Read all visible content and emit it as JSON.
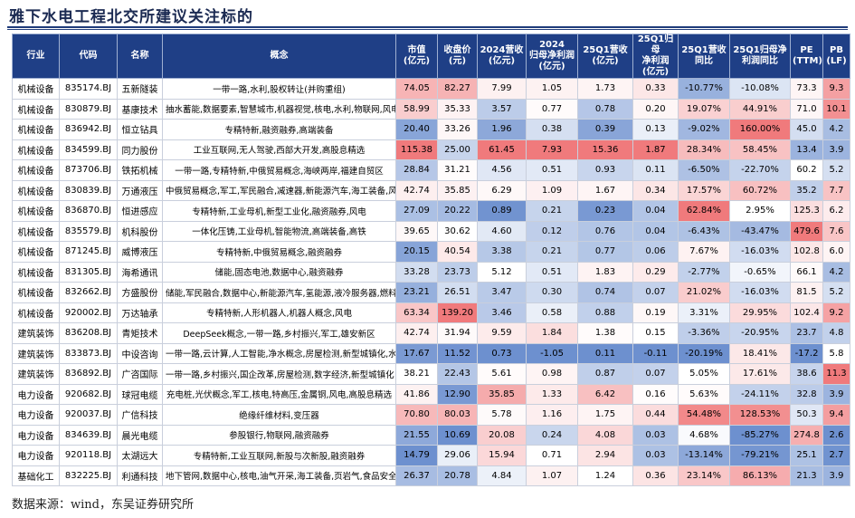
{
  "title": "雅下水电工程北交所建议关注标的",
  "footer": "数据来源：wind，东吴证券研究所",
  "headers": [
    "行业",
    "代码",
    "名称",
    "概念",
    "市值\n(亿元)",
    "收盘价\n(元)",
    "2024营收\n(亿元)",
    "2024\n归母净利润\n(亿元)",
    "25Q1营收\n(亿元)",
    "25Q1归母\n净利润\n(亿元)",
    "25Q1营收\n同比",
    "25Q1归母净\n利润同比",
    "PE\n(TTM)",
    "PB\n(LF)"
  ],
  "rows": [
    [
      "机械设备",
      "835174.BJ",
      "五新隧装",
      "一带一路,水利,股权转让(并购重组)",
      "74.05",
      "82.27",
      "7.99",
      "1.05",
      "1.73",
      "0.33",
      "-10.77%",
      "-10.08%",
      "73.3",
      "9.3"
    ],
    [
      "机械设备",
      "830879.BJ",
      "基康技术",
      "抽水蓄能,数据要素,智慧城市,机器视觉,核电,水利,物联网,风电",
      "58.99",
      "35.33",
      "3.57",
      "0.77",
      "0.78",
      "0.20",
      "19.07%",
      "44.91%",
      "71.0",
      "10.1"
    ],
    [
      "机械设备",
      "836942.BJ",
      "恒立钻具",
      "专精特新,融资融券,高端装备",
      "20.40",
      "33.26",
      "1.96",
      "0.38",
      "0.39",
      "0.13",
      "-9.02%",
      "160.00%",
      "45.0",
      "4.2"
    ],
    [
      "机械设备",
      "834599.BJ",
      "同力股份",
      "工业互联网,无人驾驶,西部大开发,高股息精选",
      "115.38",
      "25.00",
      "61.45",
      "7.93",
      "15.36",
      "1.87",
      "28.34%",
      "58.45%",
      "13.4",
      "3.9"
    ],
    [
      "机械设备",
      "873706.BJ",
      "铁拓机械",
      "一带一路,专精特新,中俄贸易概念,海峡两岸,福建自贸区",
      "28.84",
      "31.21",
      "4.56",
      "0.51",
      "0.93",
      "0.11",
      "-6.50%",
      "-22.70%",
      "60.2",
      "5.2"
    ],
    [
      "机械设备",
      "830839.BJ",
      "万通液压",
      "中俄贸易概念,军工,军民融合,减速器,新能源汽车,海工装备,风电",
      "42.74",
      "35.85",
      "6.29",
      "1.09",
      "1.67",
      "0.34",
      "17.57%",
      "60.72%",
      "35.2",
      "7.7"
    ],
    [
      "机械设备",
      "836870.BJ",
      "恒进感应",
      "专精特新,工业母机,新型工业化,融资融券,风电",
      "27.09",
      "20.22",
      "0.89",
      "0.21",
      "0.23",
      "0.04",
      "62.84%",
      "2.95%",
      "125.3",
      "6.2"
    ],
    [
      "机械设备",
      "835579.BJ",
      "机科股份",
      "一体化压铸,工业母机,智能物流,高端装备,高铁",
      "39.65",
      "30.62",
      "4.60",
      "0.12",
      "0.76",
      "0.04",
      "-6.43%",
      "-43.47%",
      "479.6",
      "7.6"
    ],
    [
      "机械设备",
      "871245.BJ",
      "威博液压",
      "专精特新,中俄贸易概念,融资融券",
      "20.15",
      "40.54",
      "3.38",
      "0.21",
      "0.77",
      "0.06",
      "7.67%",
      "-16.03%",
      "102.8",
      "6.0"
    ],
    [
      "机械设备",
      "831305.BJ",
      "海希通讯",
      "储能,固态电池,数据中心,融资融券",
      "33.28",
      "23.73",
      "5.12",
      "0.51",
      "1.83",
      "0.29",
      "-2.77%",
      "-0.65%",
      "66.1",
      "4.2"
    ],
    [
      "机械设备",
      "832662.BJ",
      "方盛股份",
      "储能,军民融合,数据中心,新能源汽车,氢能源,液冷服务器,燃料电池",
      "23.21",
      "26.51",
      "3.47",
      "0.30",
      "0.74",
      "0.07",
      "21.02%",
      "-16.03%",
      "81.5",
      "5.2"
    ],
    [
      "机械设备",
      "920002.BJ",
      "万达轴承",
      "专精特新,人形机器人,机器人概念,风电",
      "63.34",
      "139.20",
      "3.46",
      "0.58",
      "0.88",
      "0.19",
      "3.31%",
      "29.95%",
      "102.4",
      "9.2"
    ],
    [
      "建筑装饰",
      "836208.BJ",
      "青矩技术",
      "DeepSeek概念,一带一路,乡村振兴,军工,雄安新区",
      "42.74",
      "31.94",
      "9.59",
      "1.84",
      "1.38",
      "0.15",
      "-3.36%",
      "-20.95%",
      "23.7",
      "4.8"
    ],
    [
      "建筑装饰",
      "833873.BJ",
      "中设咨询",
      "一带一路,云计算,人工智能,净水概念,房屋检测,新型城镇化,水利",
      "17.67",
      "11.52",
      "0.73",
      "-1.05",
      "0.11",
      "-0.11",
      "-20.19%",
      "18.41%",
      "-17.2",
      "5.8"
    ],
    [
      "建筑装饰",
      "836892.BJ",
      "广咨国际",
      "一带一路,乡村振兴,国企改革,房屋检测,数字经济,新型城镇化",
      "38.21",
      "22.43",
      "5.61",
      "0.98",
      "0.87",
      "0.07",
      "5.05%",
      "17.61%",
      "38.6",
      "11.3"
    ],
    [
      "电力设备",
      "920682.BJ",
      "球冠电缆",
      "充电桩,光伏概念,军工,核电,特高压,金属铜,风电,高股息精选",
      "41.86",
      "12.90",
      "35.85",
      "1.33",
      "6.42",
      "0.16",
      "5.63%",
      "-24.11%",
      "32.8",
      "3.9"
    ],
    [
      "电力设备",
      "920037.BJ",
      "广信科技",
      "绝缘纤维材料,变压器",
      "70.80",
      "80.03",
      "5.78",
      "1.16",
      "1.75",
      "0.44",
      "54.48%",
      "128.53%",
      "50.3",
      "9.4"
    ],
    [
      "电力设备",
      "834639.BJ",
      "晨光电缆",
      "参股银行,物联网,融资融券",
      "21.55",
      "10.69",
      "20.08",
      "0.24",
      "4.08",
      "0.03",
      "4.68%",
      "-85.27%",
      "274.8",
      "2.6"
    ],
    [
      "电力设备",
      "920118.BJ",
      "太湖远大",
      "专精特新,工业互联网,新股与次新股,融资融券",
      "14.79",
      "29.06",
      "15.94",
      "0.71",
      "2.94",
      "0.03",
      "-13.14%",
      "-79.21%",
      "25.1",
      "2.7"
    ],
    [
      "基础化工",
      "832225.BJ",
      "利通科技",
      "地下管网,数据中心,核电,油气开采,海工装备,页岩气,食品安全",
      "26.37",
      "20.78",
      "4.84",
      "1.07",
      "1.24",
      "0.36",
      "23.14%",
      "86.13%",
      "21.3",
      "3.9"
    ]
  ],
  "colors": {
    "header_bg": "#1f3f86",
    "header_text": "#ffffff",
    "strong_red": "#f07a7c",
    "mid_red": "#f8b9b9",
    "light_red": "#fce4e4",
    "strong_blue": "#6d90cf",
    "mid_blue": "#a7bde3",
    "light_blue": "#dbe4f4",
    "white": "#ffffff"
  }
}
